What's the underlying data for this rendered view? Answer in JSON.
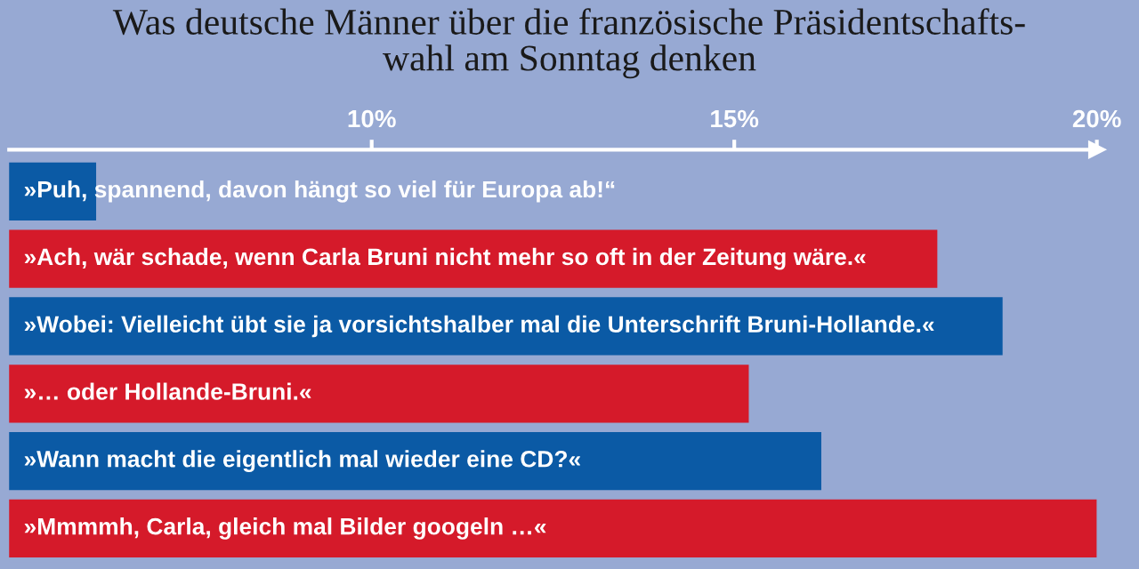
{
  "chart_data": {
    "type": "bar",
    "orientation": "horizontal",
    "title": "Was deutsche Männer über die französische Präsidentschafts-\nwahl am Sonntag denken",
    "categories": [
      "»Puh, spannend, davon hängt so viel für Europa ab!“",
      "»Ach, wär schade, wenn Carla Bruni nicht mehr so oft in der Zeitung wäre.«",
      "»Wobei: Vielleicht übt sie ja vorsichtshalber mal die Unterschrift Bruni-Hollande.«",
      "»… oder Hollande-Bruni.«",
      "»Wann macht die eigentlich mal wieder eine CD?«",
      "»Mmmmh, Carla, gleich mal Bilder googeln …«"
    ],
    "values": [
      6.2,
      17.8,
      18.7,
      15.2,
      16.2,
      20
    ],
    "colors": [
      "#0b5aa5",
      "#d51a2a",
      "#0b5aa5",
      "#d51a2a",
      "#0b5aa5",
      "#d51a2a"
    ],
    "xlim": [
      5,
      20
    ],
    "xticks": [
      {
        "value": 10,
        "label": "10%"
      },
      {
        "value": 15,
        "label": "15%"
      },
      {
        "value": 20,
        "label": "20%"
      }
    ],
    "grid": false
  }
}
